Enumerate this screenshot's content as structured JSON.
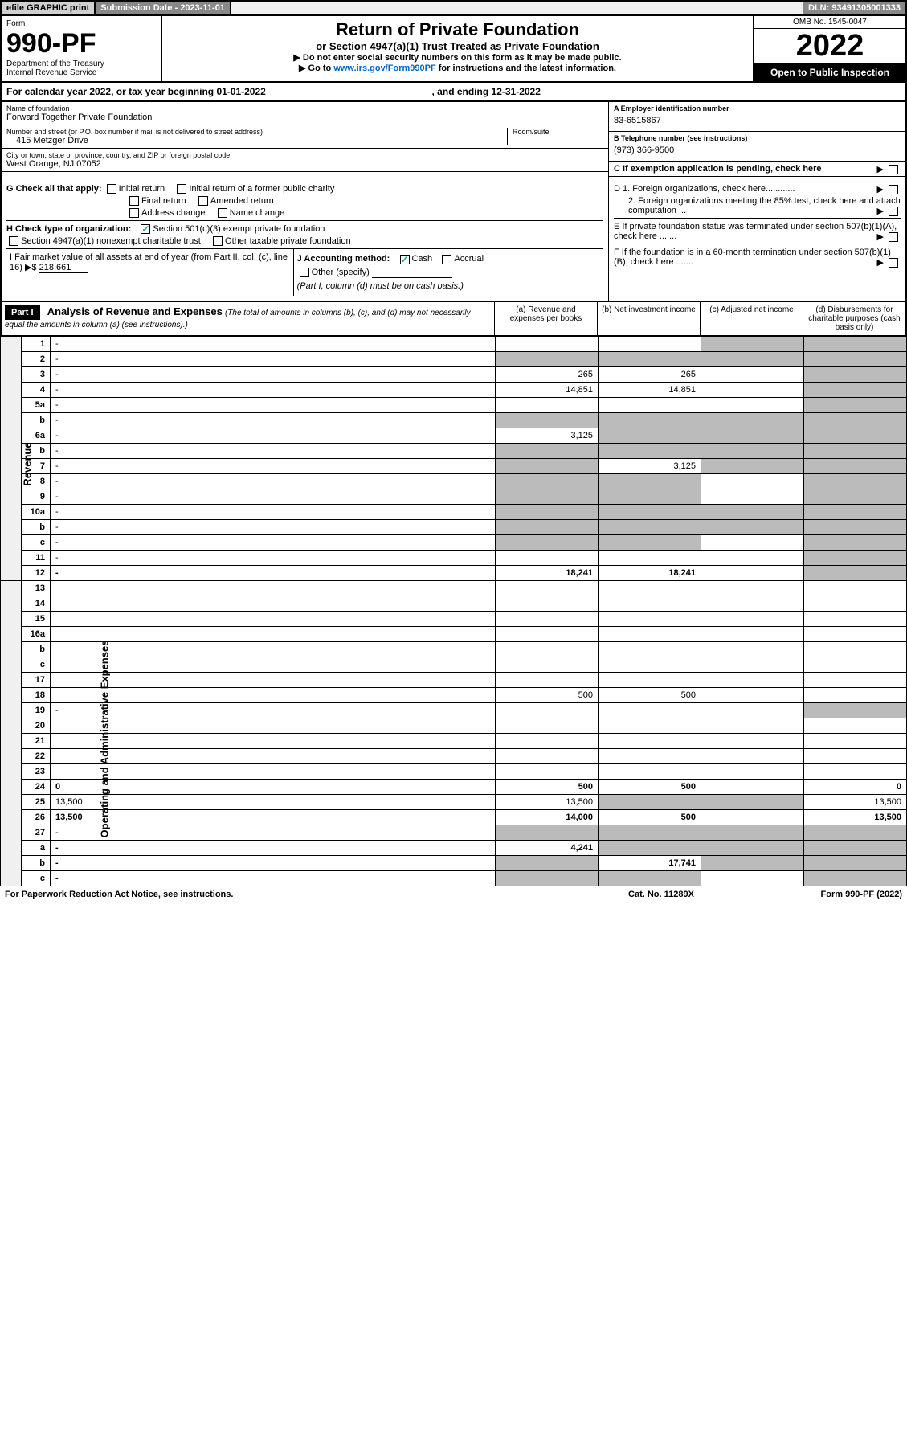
{
  "topbar": {
    "efile": "efile GRAPHIC print",
    "subdate_label": "Submission Date - 2023-11-01",
    "dln": "DLN: 93491305001333"
  },
  "header": {
    "form_label": "Form",
    "form_number": "990-PF",
    "dept1": "Department of the Treasury",
    "dept2": "Internal Revenue Service",
    "title": "Return of Private Foundation",
    "subtitle": "or Section 4947(a)(1) Trust Treated as Private Foundation",
    "note1": "▶ Do not enter social security numbers on this form as it may be made public.",
    "note2_prefix": "▶ Go to ",
    "note2_link": "www.irs.gov/Form990PF",
    "note2_suffix": " for instructions and the latest information.",
    "omb": "OMB No. 1545-0047",
    "year": "2022",
    "open": "Open to Public Inspection"
  },
  "calendar": {
    "text": "For calendar year 2022, or tax year beginning 01-01-2022",
    "ending": ", and ending 12-31-2022"
  },
  "entity": {
    "name_label": "Name of foundation",
    "name": "Forward Together Private Foundation",
    "addr_label": "Number and street (or P.O. box number if mail is not delivered to street address)",
    "addr": "415 Metzger Drive",
    "room_label": "Room/suite",
    "city_label": "City or town, state or province, country, and ZIP or foreign postal code",
    "city": "West Orange, NJ  07052",
    "ein_label": "A Employer identification number",
    "ein": "83-6515867",
    "phone_label": "B Telephone number (see instructions)",
    "phone": "(973) 366-9500",
    "c_label": "C If exemption application is pending, check here"
  },
  "boxes": {
    "g": "G Check all that apply:",
    "g_initial": "Initial return",
    "g_initial_former": "Initial return of a former public charity",
    "g_final": "Final return",
    "g_amended": "Amended return",
    "g_addr": "Address change",
    "g_name": "Name change",
    "h": "H Check type of organization:",
    "h_501c3": "Section 501(c)(3) exempt private foundation",
    "h_4947": "Section 4947(a)(1) nonexempt charitable trust",
    "h_other": "Other taxable private foundation",
    "i_label": "I Fair market value of all assets at end of year (from Part II, col. (c), line 16) ▶$ ",
    "i_value": "218,661",
    "j_label": "J Accounting method:",
    "j_cash": "Cash",
    "j_accrual": "Accrual",
    "j_other": "Other (specify)",
    "j_note": "(Part I, column (d) must be on cash basis.)",
    "d1": "D 1. Foreign organizations, check here............",
    "d2": "2. Foreign organizations meeting the 85% test, check here and attach computation ...",
    "e_label": "E  If private foundation status was terminated under section 507(b)(1)(A), check here .......",
    "f_label": "F  If the foundation is in a 60-month termination under section 507(b)(1)(B), check here .......",
    "arrow": "▶"
  },
  "analysis": {
    "part": "Part I",
    "title": "Analysis of Revenue and Expenses",
    "sub": "(The total of amounts in columns (b), (c), and (d) may not necessarily equal the amounts in column (a) (see instructions).)",
    "col_a": "(a)  Revenue and expenses per books",
    "col_b": "(b)  Net investment income",
    "col_c": "(c)  Adjusted net income",
    "col_d": "(d)  Disbursements for charitable purposes (cash basis only)"
  },
  "sections": {
    "revenue": "Revenue",
    "expenses": "Operating and Administrative Expenses"
  },
  "rows": [
    {
      "n": "1",
      "d": "-",
      "a": "",
      "b": "",
      "c": "-"
    },
    {
      "n": "2",
      "d": "-",
      "a": "-",
      "b": "-",
      "c": "-"
    },
    {
      "n": "3",
      "d": "-",
      "a": "265",
      "b": "265",
      "c": ""
    },
    {
      "n": "4",
      "d": "-",
      "a": "14,851",
      "b": "14,851",
      "c": ""
    },
    {
      "n": "5a",
      "d": "-",
      "a": "",
      "b": "",
      "c": ""
    },
    {
      "n": "b",
      "d": "-",
      "a": "-",
      "b": "-",
      "c": "-"
    },
    {
      "n": "6a",
      "d": "-",
      "a": "3,125",
      "b": "-",
      "c": "-"
    },
    {
      "n": "b",
      "d": "-",
      "a": "-",
      "b": "-",
      "c": "-"
    },
    {
      "n": "7",
      "d": "-",
      "a": "-",
      "b": "3,125",
      "c": "-"
    },
    {
      "n": "8",
      "d": "-",
      "a": "-",
      "b": "-",
      "c": ""
    },
    {
      "n": "9",
      "d": "-",
      "a": "-",
      "b": "-",
      "c": ""
    },
    {
      "n": "10a",
      "d": "-",
      "a": "-",
      "b": "-",
      "c": "-"
    },
    {
      "n": "b",
      "d": "-",
      "a": "-",
      "b": "-",
      "c": "-"
    },
    {
      "n": "c",
      "d": "-",
      "a": "-",
      "b": "-",
      "c": ""
    },
    {
      "n": "11",
      "d": "-",
      "a": "",
      "b": "",
      "c": ""
    },
    {
      "n": "12",
      "d": "-",
      "a": "18,241",
      "b": "18,241",
      "c": "",
      "bold": true
    }
  ],
  "exp_rows": [
    {
      "n": "13",
      "d": "",
      "a": "",
      "b": "",
      "c": ""
    },
    {
      "n": "14",
      "d": "",
      "a": "",
      "b": "",
      "c": ""
    },
    {
      "n": "15",
      "d": "",
      "a": "",
      "b": "",
      "c": ""
    },
    {
      "n": "16a",
      "d": "",
      "a": "",
      "b": "",
      "c": ""
    },
    {
      "n": "b",
      "d": "",
      "a": "",
      "b": "",
      "c": ""
    },
    {
      "n": "c",
      "d": "",
      "a": "",
      "b": "",
      "c": ""
    },
    {
      "n": "17",
      "d": "",
      "a": "",
      "b": "",
      "c": ""
    },
    {
      "n": "18",
      "d": "",
      "a": "500",
      "b": "500",
      "c": ""
    },
    {
      "n": "19",
      "d": "-",
      "a": "",
      "b": "",
      "c": ""
    },
    {
      "n": "20",
      "d": "",
      "a": "",
      "b": "",
      "c": ""
    },
    {
      "n": "21",
      "d": "",
      "a": "",
      "b": "",
      "c": ""
    },
    {
      "n": "22",
      "d": "",
      "a": "",
      "b": "",
      "c": ""
    },
    {
      "n": "23",
      "d": "",
      "a": "",
      "b": "",
      "c": ""
    },
    {
      "n": "24",
      "d": "0",
      "a": "500",
      "b": "500",
      "c": "",
      "bold": true
    },
    {
      "n": "25",
      "d": "13,500",
      "a": "13,500",
      "b": "-",
      "c": "-"
    },
    {
      "n": "26",
      "d": "13,500",
      "a": "14,000",
      "b": "500",
      "c": "",
      "bold": true
    },
    {
      "n": "27",
      "d": "-",
      "a": "-",
      "b": "-",
      "c": "-"
    },
    {
      "n": "a",
      "d": "-",
      "a": "4,241",
      "b": "-",
      "c": "-",
      "bold": true
    },
    {
      "n": "b",
      "d": "-",
      "a": "-",
      "b": "17,741",
      "c": "-",
      "bold": true
    },
    {
      "n": "c",
      "d": "-",
      "a": "-",
      "b": "-",
      "c": "",
      "bold": true
    }
  ],
  "footer": {
    "left": "For Paperwork Reduction Act Notice, see instructions.",
    "mid": "Cat. No. 11289X",
    "right": "Form 990-PF (2022)"
  }
}
